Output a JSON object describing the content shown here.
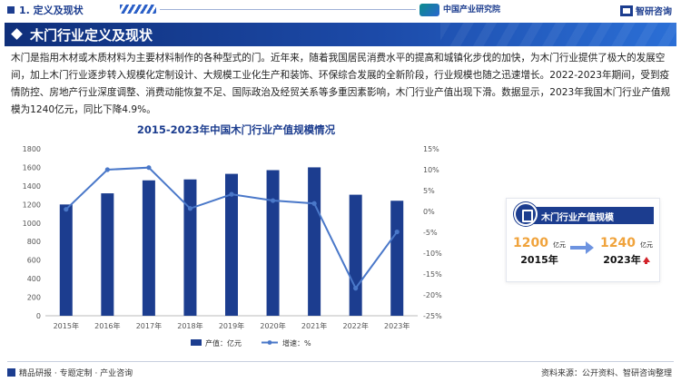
{
  "header": {
    "section": "1. 定义及现状",
    "cn_logo_text": "中国产业研究院",
    "brand": "智研咨询"
  },
  "title": "木门行业定义及现状",
  "paragraph": "木门是指用木材或木质材料为主要材料制作的各种型式的门。近年来，随着我国居民消费水平的提高和城镇化步伐的加快，为木门行业提供了极大的发展空间，加上木门行业逐步转入规模化定制设计、大规模工业化生产和装饰、环保综合发展的全新阶段，行业规模也随之迅速增长。2022-2023年期间，受到疫情防控、房地产行业深度调整、消费动能恢复不足、国际政治及经贸关系等多重因素影响，木门行业产值出现下滑。数据显示，2023年我国木门行业产值规模为1240亿元，同比下降4.9%。",
  "chart_data": {
    "type": "bar",
    "title": "2015-2023年中国木门行业产值规模情况",
    "categories": [
      "2015年",
      "2016年",
      "2017年",
      "2018年",
      "2019年",
      "2020年",
      "2021年",
      "2022年",
      "2023年"
    ],
    "series": [
      {
        "name": "产值：亿元",
        "type": "bar",
        "axis": "left",
        "values": [
          1200,
          1320,
          1460,
          1470,
          1530,
          1570,
          1600,
          1305,
          1240
        ]
      },
      {
        "name": "增速：%",
        "type": "line",
        "axis": "right",
        "values": [
          0.5,
          10.0,
          10.5,
          0.7,
          4.1,
          2.6,
          1.9,
          -18.4,
          -4.9
        ]
      }
    ],
    "ylim_left": [
      0,
      1800
    ],
    "yticks_left": [
      "0",
      "200",
      "400",
      "600",
      "800",
      "1000",
      "1200",
      "1400",
      "1600",
      "1800"
    ],
    "ylim_right": [
      -25,
      15
    ],
    "yticks_right": [
      "-25%",
      "-20%",
      "-15%",
      "-10%",
      "-5%",
      "0%",
      "5%",
      "10%",
      "15%"
    ],
    "legend": "bottom",
    "colors": {
      "bar": "#1c3d8f",
      "line": "#4a78c9"
    }
  },
  "card": {
    "title": "木门行业产值规模",
    "left_value": "1200",
    "left_unit": "亿元",
    "left_year": "2015年",
    "right_value": "1240",
    "right_unit": "亿元",
    "right_year": "2023年"
  },
  "footer": {
    "left": "精品研报 · 专题定制 · 产业咨询",
    "right": "资料来源：公开资料、智研咨询整理"
  }
}
